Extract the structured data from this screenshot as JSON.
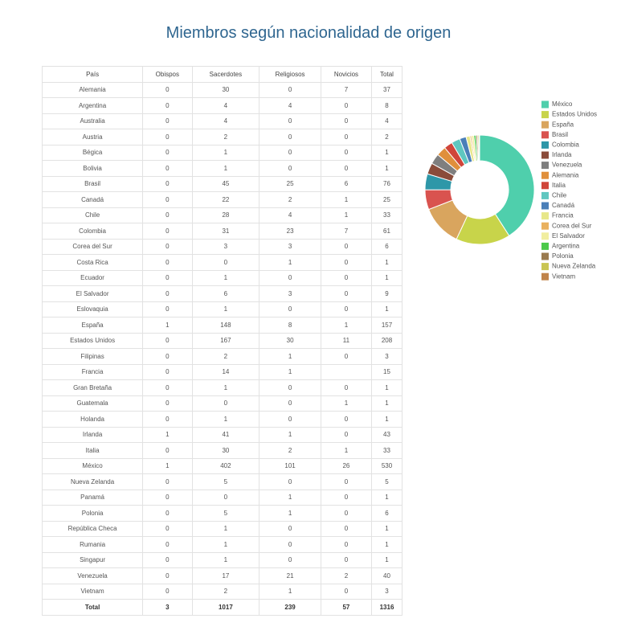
{
  "title": "Miembros según nacionalidad de origen",
  "table": {
    "header": [
      "País",
      "Obispos",
      "Sacerdotes",
      "Religiosos",
      "Novicios",
      "Total"
    ],
    "rows": [
      [
        "Alemania",
        0,
        30,
        0,
        7,
        37
      ],
      [
        "Argentina",
        0,
        4,
        4,
        0,
        8
      ],
      [
        "Australia",
        0,
        4,
        0,
        0,
        4
      ],
      [
        "Austria",
        0,
        2,
        0,
        0,
        2
      ],
      [
        "Bégica",
        0,
        1,
        0,
        0,
        1
      ],
      [
        "Bolivia",
        0,
        1,
        0,
        0,
        1
      ],
      [
        "Brasil",
        0,
        45,
        25,
        6,
        76
      ],
      [
        "Canadá",
        0,
        22,
        2,
        1,
        25
      ],
      [
        "Chile",
        0,
        28,
        4,
        1,
        33
      ],
      [
        "Colombia",
        0,
        31,
        23,
        7,
        61
      ],
      [
        "Corea del Sur",
        0,
        3,
        3,
        0,
        6
      ],
      [
        "Costa Rica",
        0,
        0,
        1,
        0,
        1
      ],
      [
        "Ecuador",
        0,
        1,
        0,
        0,
        1
      ],
      [
        "El Salvador",
        0,
        6,
        3,
        0,
        9
      ],
      [
        "Eslovaquia",
        0,
        1,
        0,
        0,
        1
      ],
      [
        "España",
        1,
        148,
        8,
        1,
        157
      ],
      [
        "Estados Unidos",
        0,
        167,
        30,
        11,
        208
      ],
      [
        "Filipinas",
        0,
        2,
        1,
        0,
        3
      ],
      [
        "Francia",
        0,
        14,
        1,
        null,
        15
      ],
      [
        "Gran Bretaña",
        0,
        1,
        0,
        0,
        1
      ],
      [
        "Guatemala",
        0,
        0,
        0,
        1,
        1
      ],
      [
        "Holanda",
        0,
        1,
        0,
        0,
        1
      ],
      [
        "Irlanda",
        1,
        41,
        1,
        0,
        43
      ],
      [
        "Italia",
        0,
        30,
        2,
        1,
        33
      ],
      [
        "México",
        1,
        402,
        101,
        26,
        530
      ],
      [
        "Nueva Zelanda",
        0,
        5,
        0,
        0,
        5
      ],
      [
        "Panamá",
        0,
        0,
        1,
        0,
        1
      ],
      [
        "Polonia",
        0,
        5,
        1,
        0,
        6
      ],
      [
        "República Checa",
        0,
        1,
        0,
        0,
        1
      ],
      [
        "Rumania",
        0,
        1,
        0,
        0,
        1
      ],
      [
        "Singapur",
        0,
        1,
        0,
        0,
        1
      ],
      [
        "Venezuela",
        0,
        17,
        21,
        2,
        40
      ],
      [
        "Vietnam",
        0,
        2,
        1,
        0,
        3
      ]
    ],
    "footer": [
      "Total",
      3,
      1017,
      239,
      57,
      1316
    ]
  },
  "chart_data": {
    "type": "donut",
    "categories": [
      "México",
      "Estados Unidos",
      "España",
      "Brasil",
      "Colombia",
      "Irlanda",
      "Venezuela",
      "Alemania",
      "Italia",
      "Chile",
      "Canadá",
      "Francia",
      "Corea del Sur",
      "El Salvador",
      "Argentina",
      "Polonia",
      "Nueva Zelanda",
      "Vietnam"
    ],
    "values": [
      530,
      208,
      157,
      76,
      61,
      43,
      40,
      37,
      33,
      33,
      25,
      15,
      6,
      9,
      8,
      6,
      5,
      3
    ],
    "colors": [
      "#4fcfac",
      "#c8d44a",
      "#d9a55e",
      "#d9534f",
      "#2e97a8",
      "#8b4c3a",
      "#7f7f7f",
      "#e08f3b",
      "#d0453a",
      "#5fc7c0",
      "#4a7fb8",
      "#e7e78a",
      "#e9b15f",
      "#f1eea0",
      "#4cc94a",
      "#9a7b4f",
      "#c9c552",
      "#c0844a"
    ],
    "legend": "right"
  }
}
